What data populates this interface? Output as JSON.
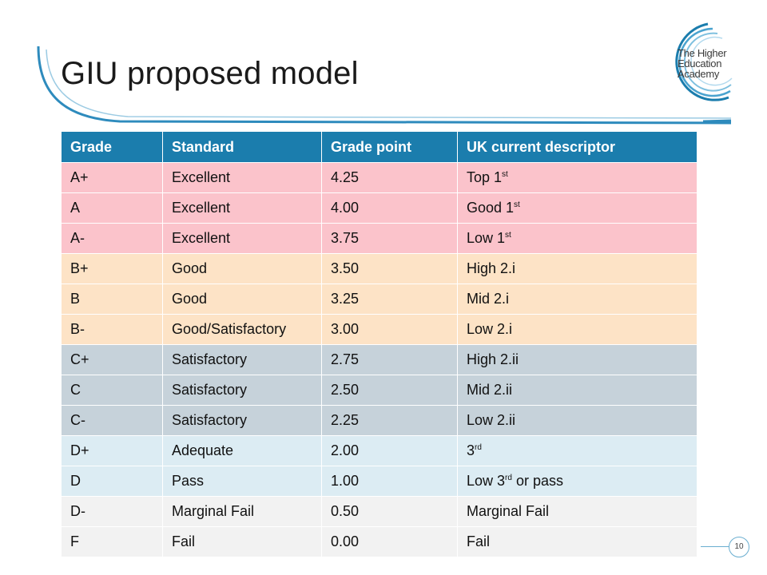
{
  "slide": {
    "title": "GIU proposed model",
    "page_number": "10"
  },
  "logo": {
    "lines": [
      "The Higher",
      "Education",
      "Academy"
    ]
  },
  "colors": {
    "header": "#1b7dad",
    "excellent": "#fbc3cb",
    "good": "#fde3c6",
    "satisfactory": "#c6d2da",
    "adequate": "#dcecf3",
    "fail": "#f2f2f2",
    "arc": "#2e8bbd"
  },
  "table": {
    "headers": [
      "Grade",
      "Standard",
      "Grade point",
      "UK current descriptor"
    ],
    "rows": [
      {
        "grade": "A+",
        "standard": "Excellent",
        "point": "4.25",
        "desc": "Top 1",
        "sup": "st",
        "tail": ""
      },
      {
        "grade": "A",
        "standard": "Excellent",
        "point": "4.00",
        "desc": "Good 1",
        "sup": "st",
        "tail": ""
      },
      {
        "grade": "A-",
        "standard": "Excellent",
        "point": "3.75",
        "desc": "Low 1",
        "sup": "st",
        "tail": ""
      },
      {
        "grade": "B+",
        "standard": "Good",
        "point": "3.50",
        "desc": "High 2.i",
        "sup": "",
        "tail": ""
      },
      {
        "grade": "B",
        "standard": "Good",
        "point": "3.25",
        "desc": "Mid 2.i",
        "sup": "",
        "tail": ""
      },
      {
        "grade": "B-",
        "standard": "Good/Satisfactory",
        "point": "3.00",
        "desc": "Low 2.i",
        "sup": "",
        "tail": ""
      },
      {
        "grade": "C+",
        "standard": "Satisfactory",
        "point": "2.75",
        "desc": "High 2.ii",
        "sup": "",
        "tail": ""
      },
      {
        "grade": "C",
        "standard": "Satisfactory",
        "point": "2.50",
        "desc": "Mid 2.ii",
        "sup": "",
        "tail": ""
      },
      {
        "grade": "C-",
        "standard": "Satisfactory",
        "point": "2.25",
        "desc": "Low 2.ii",
        "sup": "",
        "tail": ""
      },
      {
        "grade": "D+",
        "standard": "Adequate",
        "point": "2.00",
        "desc": "3",
        "sup": "rd",
        "tail": ""
      },
      {
        "grade": "D",
        "standard": "Pass",
        "point": "1.00",
        "desc": "Low 3",
        "sup": "rd",
        "tail": " or pass"
      },
      {
        "grade": "D-",
        "standard": "Marginal Fail",
        "point": "0.50",
        "desc": "Marginal Fail",
        "sup": "",
        "tail": ""
      },
      {
        "grade": "F",
        "standard": "Fail",
        "point": "0.00",
        "desc": "Fail",
        "sup": "",
        "tail": ""
      }
    ]
  }
}
